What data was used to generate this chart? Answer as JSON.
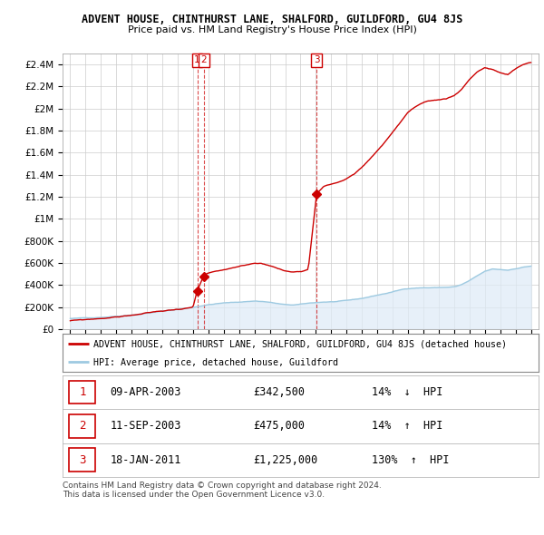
{
  "title": "ADVENT HOUSE, CHINTHURST LANE, SHALFORD, GUILDFORD, GU4 8JS",
  "subtitle": "Price paid vs. HM Land Registry's House Price Index (HPI)",
  "ylim": [
    0,
    2500000
  ],
  "yticks": [
    0,
    200000,
    400000,
    600000,
    800000,
    1000000,
    1200000,
    1400000,
    1600000,
    1800000,
    2000000,
    2200000,
    2400000
  ],
  "ytick_labels": [
    "£0",
    "£200K",
    "£400K",
    "£600K",
    "£800K",
    "£1M",
    "£1.2M",
    "£1.4M",
    "£1.6M",
    "£1.8M",
    "£2M",
    "£2.2M",
    "£2.4M"
  ],
  "hpi_color": "#9ecae1",
  "hpi_fill_color": "#deebf7",
  "price_color": "#cc0000",
  "sale_marker_color": "#cc0000",
  "annotation_box_color": "#cc0000",
  "grid_color": "#cccccc",
  "background_color": "#ffffff",
  "legend_label_red": "ADVENT HOUSE, CHINTHURST LANE, SHALFORD, GUILDFORD, GU4 8JS (detached house)",
  "legend_label_blue": "HPI: Average price, detached house, Guildford",
  "sales": [
    {
      "label": "1",
      "date_str": "09-APR-2003",
      "price": 342500,
      "year": 2003.27,
      "pct": "14%",
      "dir": "↓"
    },
    {
      "label": "2",
      "date_str": "11-SEP-2003",
      "price": 475000,
      "year": 2003.7,
      "pct": "14%",
      "dir": "↑"
    },
    {
      "label": "3",
      "date_str": "18-JAN-2011",
      "price": 1225000,
      "year": 2011.05,
      "pct": "130%",
      "dir": "↑"
    }
  ],
  "footer_line1": "Contains HM Land Registry data © Crown copyright and database right 2024.",
  "footer_line2": "This data is licensed under the Open Government Licence v3.0."
}
